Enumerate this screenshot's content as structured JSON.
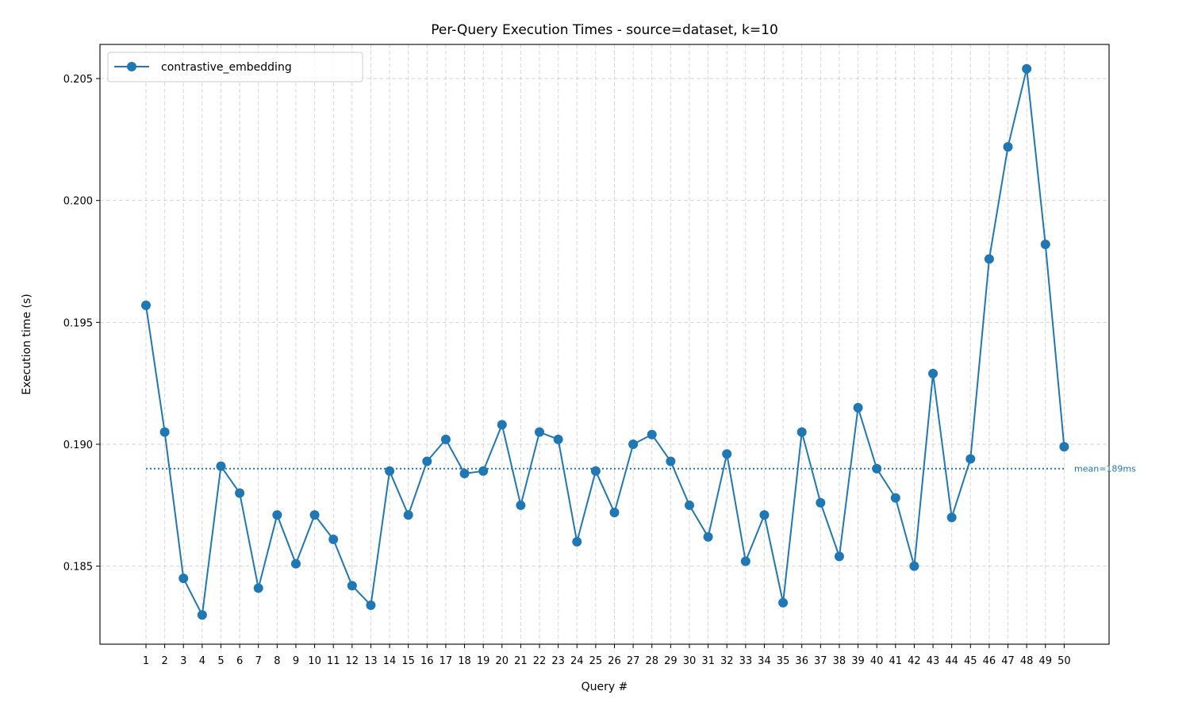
{
  "chart_data": {
    "type": "line",
    "title": "Per-Query Execution Times - source=dataset, k=10",
    "xlabel": "Query #",
    "ylabel": "Execution time (s)",
    "x": [
      1,
      2,
      3,
      4,
      5,
      6,
      7,
      8,
      9,
      10,
      11,
      12,
      13,
      14,
      15,
      16,
      17,
      18,
      19,
      20,
      21,
      22,
      23,
      24,
      25,
      26,
      27,
      28,
      29,
      30,
      31,
      32,
      33,
      34,
      35,
      36,
      37,
      38,
      39,
      40,
      41,
      42,
      43,
      44,
      45,
      46,
      47,
      48,
      49,
      50
    ],
    "xtick_labels": [
      "1",
      "2",
      "3",
      "4",
      "5",
      "6",
      "7",
      "8",
      "9",
      "10",
      "11",
      "12",
      "13",
      "14",
      "15",
      "16",
      "17",
      "18",
      "19",
      "20",
      "21",
      "22",
      "23",
      "24",
      "25",
      "26",
      "27",
      "28",
      "29",
      "30",
      "31",
      "32",
      "33",
      "34",
      "35",
      "36",
      "37",
      "38",
      "39",
      "40",
      "41",
      "42",
      "43",
      "44",
      "45",
      "46",
      "47",
      "48",
      "49",
      "50"
    ],
    "ylim": [
      0.1818,
      0.2064
    ],
    "yticks": [
      0.185,
      0.19,
      0.195,
      0.2,
      0.205
    ],
    "ytick_labels": [
      "0.185",
      "0.190",
      "0.195",
      "0.200",
      "0.205"
    ],
    "grid": true,
    "legend_position": "top-left",
    "series": [
      {
        "name": "contrastive_embedding",
        "color": "#1f77b4",
        "values": [
          0.1957,
          0.1905,
          0.1845,
          0.183,
          0.1891,
          0.188,
          0.1841,
          0.1871,
          0.1851,
          0.1871,
          0.1861,
          0.1842,
          0.1834,
          0.1889,
          0.1871,
          0.1893,
          0.1902,
          0.1888,
          0.1889,
          0.1908,
          0.1875,
          0.1905,
          0.1902,
          0.186,
          0.1889,
          0.1872,
          0.19,
          0.1904,
          0.1893,
          0.1875,
          0.1862,
          0.1896,
          0.1852,
          0.1871,
          0.1835,
          0.1905,
          0.1876,
          0.1854,
          0.1915,
          0.189,
          0.1878,
          0.185,
          0.1929,
          0.187,
          0.1894,
          0.1976,
          0.2022,
          0.2054,
          0.1982,
          0.1899
        ]
      }
    ],
    "mean": {
      "value": 0.189,
      "label": "mean=189ms",
      "color": "#1f77b4"
    }
  }
}
